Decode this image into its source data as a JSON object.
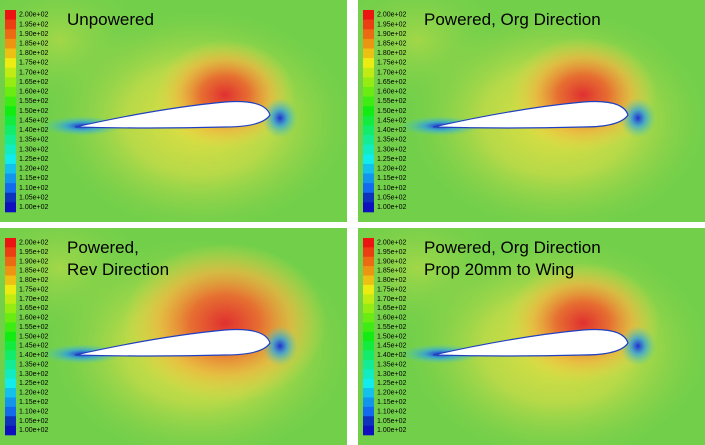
{
  "panels": [
    {
      "title": [
        "Unpowered"
      ],
      "colorbar": [
        "2.00e+02",
        "1.95e+02",
        "1.90e+02",
        "1.85e+02",
        "1.80e+02",
        "1.75e+02",
        "1.70e+02",
        "1.65e+02",
        "1.60e+02",
        "1.55e+02",
        "1.50e+02",
        "1.45e+02",
        "1.40e+02",
        "1.35e+02",
        "1.30e+02",
        "1.25e+02",
        "1.20e+02",
        "1.15e+02",
        "1.10e+02",
        "1.05e+02",
        "1.00e+02"
      ]
    },
    {
      "title": [
        "Powered, Org Direction"
      ],
      "colorbar": [
        "2.00e+02",
        "1.95e+02",
        "1.90e+02",
        "1.85e+02",
        "1.80e+02",
        "1.75e+02",
        "1.70e+02",
        "1.65e+02",
        "1.60e+02",
        "1.55e+02",
        "1.50e+02",
        "1.45e+02",
        "1.40e+02",
        "1.35e+02",
        "1.30e+02",
        "1.25e+02",
        "1.20e+02",
        "1.15e+02",
        "1.10e+02",
        "1.05e+02",
        "1.00e+02"
      ]
    },
    {
      "title": [
        "Powered,",
        "Rev Direction"
      ],
      "colorbar": [
        "2.00e+02",
        "1.95e+02",
        "1.90e+02",
        "1.85e+02",
        "1.80e+02",
        "1.75e+02",
        "1.70e+02",
        "1.65e+02",
        "1.60e+02",
        "1.55e+02",
        "1.50e+02",
        "1.45e+02",
        "1.40e+02",
        "1.35e+02",
        "1.30e+02",
        "1.25e+02",
        "1.20e+02",
        "1.15e+02",
        "1.10e+02",
        "1.05e+02",
        "1.00e+02"
      ]
    },
    {
      "title": [
        "Powered, Org Direction",
        "Prop 20mm to Wing"
      ],
      "colorbar": [
        "2.00e+02",
        "1.95e+02",
        "1.90e+02",
        "1.85e+02",
        "1.80e+02",
        "1.75e+02",
        "1.70e+02",
        "1.65e+02",
        "1.60e+02",
        "1.55e+02",
        "1.50e+02",
        "1.45e+02",
        "1.40e+02",
        "1.35e+02",
        "1.30e+02",
        "1.25e+02",
        "1.20e+02",
        "1.15e+02",
        "1.10e+02",
        "1.05e+02",
        "1.00e+02"
      ]
    }
  ]
}
